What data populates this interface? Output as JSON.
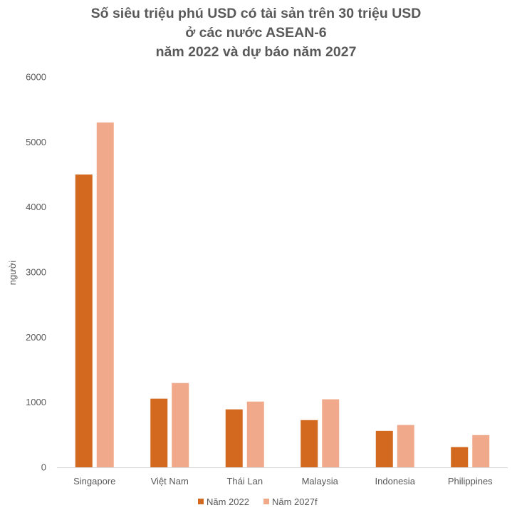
{
  "chart_data": {
    "type": "bar",
    "title_lines": [
      "Số siêu triệu phú USD có tài sản trên 30 triệu USD",
      "ở các nước ASEAN-6",
      "năm 2022 và dự báo năm 2027"
    ],
    "ylabel": "người",
    "xlabel": "",
    "ylim": [
      0,
      6000
    ],
    "yticks": [
      0,
      1000,
      2000,
      3000,
      4000,
      5000,
      6000
    ],
    "grid": false,
    "legend_position": "bottom",
    "categories": [
      "Singapore",
      "Việt Nam",
      "Thái Lan",
      "Malaysia",
      "Indonesia",
      "Philippines"
    ],
    "series": [
      {
        "name": "Năm 2022",
        "color": "#D2691E",
        "values": [
          4500,
          1055,
          890,
          725,
          560,
          310
        ]
      },
      {
        "name": "Năm 2027f",
        "color": "#F0A98A",
        "values": [
          5300,
          1295,
          1010,
          1045,
          650,
          495
        ]
      }
    ]
  }
}
